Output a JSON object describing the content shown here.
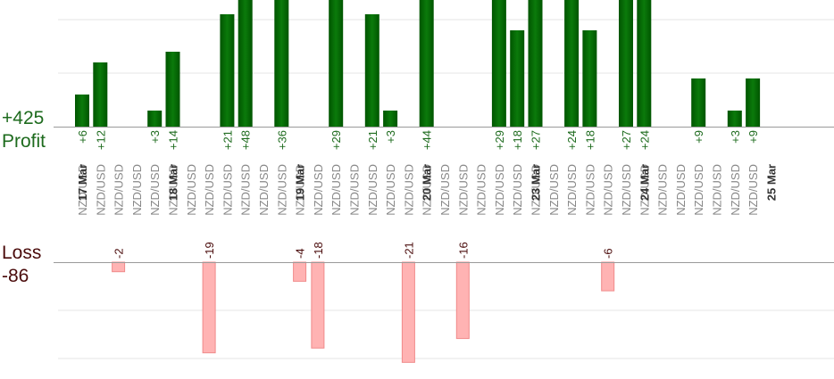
{
  "chart_data": {
    "type": "bar",
    "profit_total_label": "+425",
    "profit_label": "Profit",
    "loss_label": "Loss",
    "loss_total_label": "-86",
    "pair_label": "NZD/USD",
    "colors": {
      "profit": "#0b7a0b",
      "profit_dark": "#005500",
      "loss_fill": "#ffb3b3",
      "loss_stroke": "#f08a8a",
      "profit_text": "#1e6b1e",
      "loss_text": "#4a0b0b",
      "date_text": "#333333",
      "pair_text": "#888888",
      "grid": "#e6e6e6",
      "axis": "#9a9a9a"
    },
    "dates": [
      {
        "label": "17 Mar",
        "slot": 0
      },
      {
        "label": "18 Mar",
        "slot": 5
      },
      {
        "label": "19 Mar",
        "slot": 12
      },
      {
        "label": "20 Mar",
        "slot": 19
      },
      {
        "label": "23 Mar",
        "slot": 25
      },
      {
        "label": "24 Mar",
        "slot": 31
      },
      {
        "label": "25 Mar",
        "slot": 38
      }
    ],
    "trades": [
      {
        "value": 6
      },
      {
        "value": 12
      },
      {
        "value": -2
      },
      {},
      {
        "value": 3
      },
      {
        "value": 14
      },
      {},
      {
        "value": -19
      },
      {
        "value": 21
      },
      {
        "value": 48
      },
      {},
      {
        "value": 36
      },
      {
        "value": -4
      },
      {
        "value": -18
      },
      {
        "value": 29
      },
      {},
      {
        "value": 21
      },
      {
        "value": 3
      },
      {
        "value": -21
      },
      {
        "value": 44
      },
      {},
      {
        "value": -16
      },
      {},
      {
        "value": 29
      },
      {
        "value": 18
      },
      {
        "value": 27
      },
      {},
      {
        "value": 24
      },
      {
        "value": 18
      },
      {
        "value": -6
      },
      {
        "value": 27
      },
      {
        "value": 24
      },
      {},
      {},
      {
        "value": 9
      },
      {},
      {
        "value": 3
      },
      {
        "value": 9
      }
    ]
  }
}
